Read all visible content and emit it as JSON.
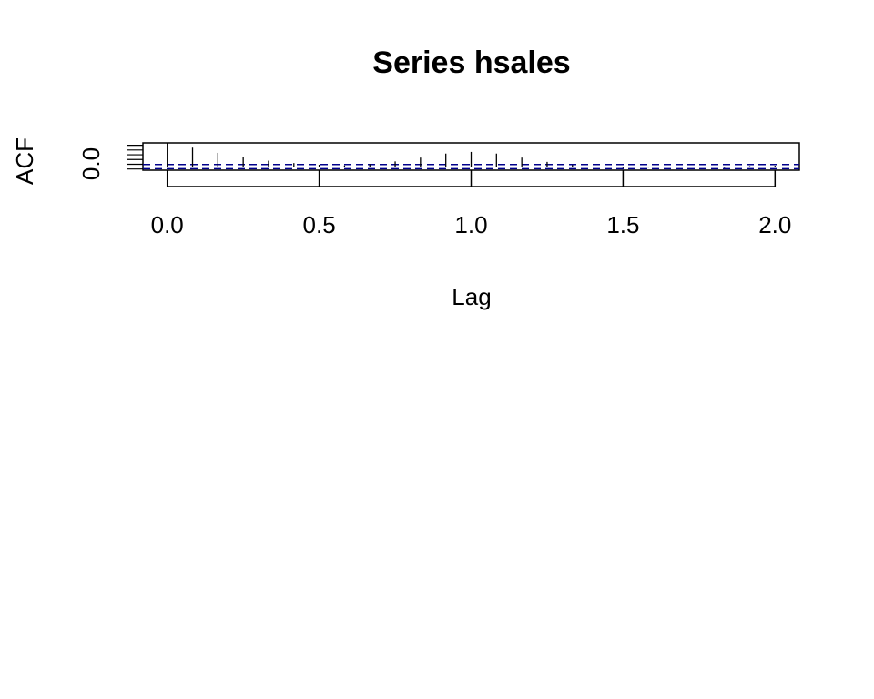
{
  "chart_data": {
    "type": "bar",
    "title": "Series  hsales",
    "xlabel": "Lag",
    "ylabel": "ACF",
    "x_ticks": [
      "0.0",
      "0.5",
      "1.0",
      "1.5",
      "2.0"
    ],
    "y_ticks": [
      "0.0"
    ],
    "xlim": [
      -0.08,
      2.08
    ],
    "ylim": [
      -0.15,
      1.0
    ],
    "confidence_bound": 0.09,
    "colors": {
      "bars": "#000000",
      "confidence_lines": "#00008b",
      "frame": "#000000"
    },
    "series": [
      {
        "lags": [
          0.0,
          0.0833,
          0.1667,
          0.25,
          0.3333,
          0.4167,
          0.5,
          0.5833,
          0.6667,
          0.75,
          0.8333,
          0.9167,
          1.0,
          1.0833,
          1.1667,
          1.25,
          1.3333,
          1.4167,
          1.5,
          1.5833,
          1.6667,
          1.75,
          1.8333,
          1.9167,
          2.0
        ],
        "acf": [
          1.0,
          0.8,
          0.58,
          0.4,
          0.25,
          0.15,
          0.08,
          0.05,
          0.1,
          0.22,
          0.38,
          0.55,
          0.62,
          0.55,
          0.38,
          0.2,
          0.07,
          -0.02,
          -0.06,
          -0.04,
          -0.02,
          -0.03,
          -0.05,
          0.02,
          0.04
        ]
      }
    ]
  }
}
